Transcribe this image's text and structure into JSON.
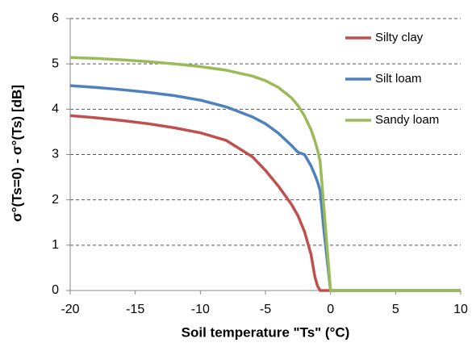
{
  "chart_data": {
    "type": "line",
    "xlabel": "Soil temperature \"Ts\" (°C)",
    "ylabel": "σ°(Ts=0) - σ°(Ts) [dB]",
    "x": [
      -20,
      -18,
      -16,
      -14,
      -12,
      -10,
      -8,
      -6,
      -5,
      -4,
      -3,
      -2.5,
      -2,
      -1.5,
      -1.2,
      -1,
      -0.8,
      -0.5,
      0,
      2,
      4,
      6,
      8,
      10
    ],
    "series": [
      {
        "name": "Silty clay",
        "color": "#c0504d",
        "values": [
          3.86,
          3.81,
          3.75,
          3.68,
          3.59,
          3.48,
          3.31,
          2.95,
          2.65,
          2.3,
          1.9,
          1.65,
          1.3,
          0.8,
          0.3,
          0.1,
          0,
          0,
          0,
          0,
          0,
          0,
          0,
          0
        ]
      },
      {
        "name": "Silt loam",
        "color": "#4f81bd",
        "values": [
          4.52,
          4.48,
          4.43,
          4.37,
          4.3,
          4.2,
          4.05,
          3.83,
          3.68,
          3.47,
          3.2,
          3.05,
          3.0,
          2.75,
          2.55,
          2.4,
          2.2,
          1.3,
          0,
          0,
          0,
          0,
          0,
          0
        ]
      },
      {
        "name": "Sandy loam",
        "color": "#9bbb59",
        "values": [
          5.14,
          5.12,
          5.09,
          5.05,
          5.0,
          4.94,
          4.86,
          4.73,
          4.63,
          4.48,
          4.25,
          4.08,
          3.85,
          3.55,
          3.3,
          3.1,
          2.85,
          1.8,
          0,
          0,
          0,
          0,
          0,
          0
        ]
      }
    ],
    "xlim": [
      -20,
      10
    ],
    "xticks": [
      -20,
      -15,
      -10,
      -5,
      0,
      5,
      10
    ],
    "ylim": [
      0,
      6
    ],
    "yticks": [
      0,
      1,
      2,
      3,
      4,
      5,
      6
    ],
    "grid": true
  }
}
